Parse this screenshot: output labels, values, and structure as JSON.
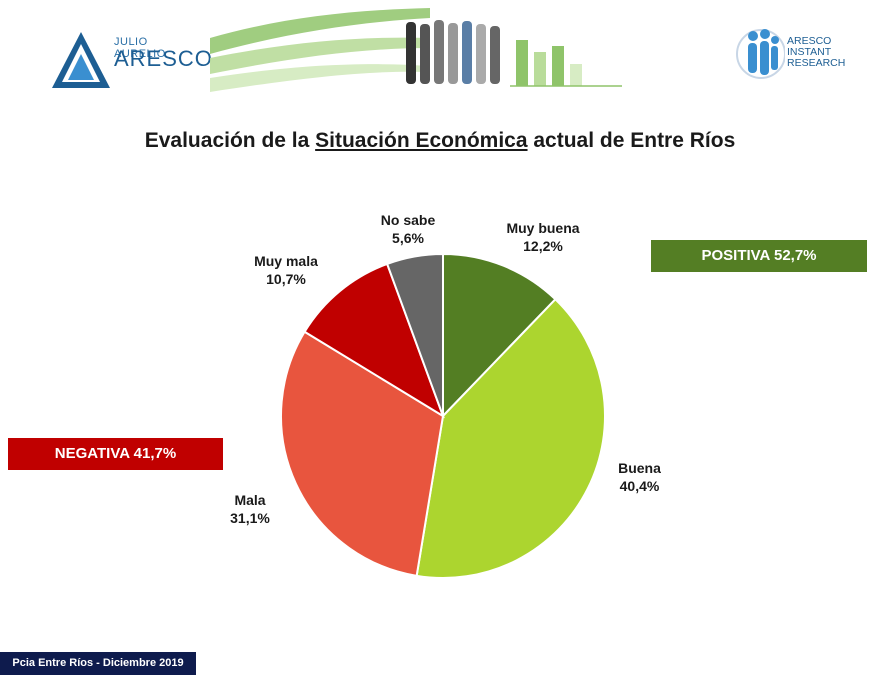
{
  "header": {
    "brand_small": "JULIO AURELIO",
    "brand_name": "ARESCO",
    "right_logo_lines": [
      "ARESCO",
      "INSTANT",
      "RESEARCH"
    ]
  },
  "title": {
    "before": "Evaluación de la ",
    "underlined": "Situación Económica",
    "after": " actual de Entre Ríos"
  },
  "summary": {
    "positiva": "POSITIVA 52,7%",
    "negativa": "NEGATIVA 41,7%"
  },
  "footer": "Pcia Entre Ríos - Diciembre 2019",
  "colors": {
    "muy_buena": "#537e23",
    "buena": "#acd52f",
    "mala": "#e8553e",
    "muy_mala": "#c00000",
    "no_sabe": "#666666",
    "positiva_tag": "#547e24",
    "negativa_tag": "#c00000",
    "footer_bg": "#0e1b4d"
  },
  "chart_data": {
    "type": "pie",
    "slices": [
      {
        "label": "Muy buena",
        "value_text": "12,2%",
        "value": 12.2,
        "color": "#537e23"
      },
      {
        "label": "Buena",
        "value_text": "40,4%",
        "value": 40.4,
        "color": "#acd52f"
      },
      {
        "label": "Mala",
        "value_text": "31,1%",
        "value": 31.1,
        "color": "#e8553e"
      },
      {
        "label": "Muy mala",
        "value_text": "10,7%",
        "value": 10.7,
        "color": "#c00000"
      },
      {
        "label": "No sabe",
        "value_text": "5,6%",
        "value": 5.6,
        "color": "#666666"
      }
    ],
    "start": "12 o'clock",
    "direction": "clockwise"
  }
}
